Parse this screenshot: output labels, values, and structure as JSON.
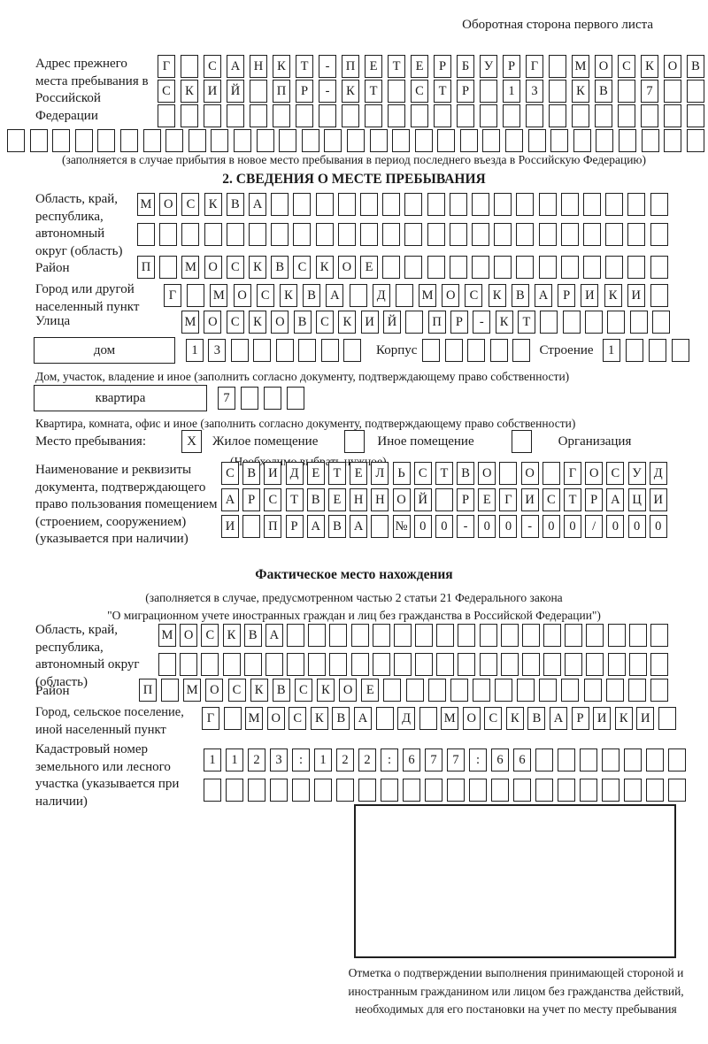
{
  "colors": {
    "ink": "#1a1a1a",
    "paper": "#ffffff"
  },
  "corner_note": "Оборотная сторона первого листа",
  "prev_address": {
    "label": "Адрес прежнего места пребывания в Российской Федерации",
    "row1": {
      "text": "Г САНКТ-ПЕТЕРБУРГ МОСКОВ",
      "count": 24
    },
    "row2": {
      "text": "СКИЙ ПР-КТ СТР 13 КВ 7",
      "count": 24
    },
    "row3": {
      "text": "",
      "count": 24
    },
    "row4": {
      "text": "",
      "count": 31
    },
    "note": "(заполняется в случае прибытия в новое место пребывания в период последнего въезда в Российскую Федерацию)"
  },
  "section2": {
    "heading": "2. СВЕДЕНИЯ О МЕСТЕ ПРЕБЫВАНИЯ",
    "region": {
      "label": "Область, край, республика, автономный округ (область)",
      "row1": {
        "text": "МОСКВА",
        "count": 24
      },
      "row2": {
        "text": "",
        "count": 24
      }
    },
    "district": {
      "label": "Район",
      "row": {
        "text": "П МОСКВСКОЕ",
        "count": 24
      }
    },
    "city": {
      "label": "Город или другой населенный пункт",
      "row": {
        "text": "Г МОСКВА Д МОСКВАРИКИ",
        "count": 22
      }
    },
    "street": {
      "label": "Улица",
      "row": {
        "text": "МОСКОВСКИЙ ПР-КТ",
        "count": 22
      }
    },
    "house": {
      "type_label": "дом",
      "number": {
        "text": "13",
        "count": 8
      },
      "korpus_label": "Корпус",
      "korpus": {
        "text": "",
        "count": 5
      },
      "stroenie_label": "Строение",
      "stroenie": {
        "text": "1",
        "count": 4
      }
    },
    "house_caption": "Дом, участок, владение и иное (заполнить согласно документу, подтверждающему право собственности)",
    "apartment": {
      "type_label": "квартира",
      "number": {
        "text": "7",
        "count": 4
      }
    },
    "apartment_caption": "Квартира, комната, офис и иное (заполнить согласно документу, подтверждающему право собственности)",
    "stay_type": {
      "label": "Место пребывания:",
      "options": [
        {
          "label": "Жилое помещение",
          "value": "X"
        },
        {
          "label": "Иное помещение",
          "value": ""
        },
        {
          "label": "Организация",
          "value": ""
        }
      ],
      "note": "(Необходимо выбрать нужное)"
    },
    "doc": {
      "label": "Наименование и реквизиты документа, подтверждающего право пользования помещением (строением, сооружением) (указывается при наличии)",
      "row1": {
        "text": "СВИДЕТЕЛЬСТВО О ГОСУД",
        "count": 21
      },
      "row2": {
        "text": "АРСТВЕННОЙ РЕГИСТРАЦИ",
        "count": 21
      },
      "row3": {
        "text": "И ПРАВА №00-00-00/000",
        "count": 21
      }
    }
  },
  "actual_location": {
    "heading": "Фактическое место нахождения",
    "note_line1": "(заполняется в случае, предусмотренном частью 2 статьи 21 Федерального закона",
    "note_line2": "\"О миграционном учете иностранных граждан и лиц без гражданства в Российской Федерации\")",
    "region": {
      "label": "Область, край, республика, автономный округ (область)",
      "row1": {
        "text": "МОСКВА",
        "count": 24
      },
      "row2": {
        "text": "",
        "count": 24
      }
    },
    "district": {
      "label": "Район",
      "row": {
        "text": "П МОСКВСКОЕ",
        "count": 24
      }
    },
    "city": {
      "label": "Город, сельское поселение, иной населенный пункт",
      "row": {
        "text": "Г МОСКВА Д МОСКВАРИКИ",
        "count": 22
      }
    },
    "cadastral": {
      "label": "Кадастровый номер земельного или лесного участка (указывается при наличии)",
      "row1": {
        "text": "1123:122:677:66",
        "count": 22
      },
      "row2": {
        "text": "",
        "count": 22
      }
    },
    "stamp_caption": "Отметка о подтверждении выполнения принимающей стороной и иностранным гражданином или лицом без гражданства действий, необходимых для его постановки на учет по месту пребывания"
  }
}
